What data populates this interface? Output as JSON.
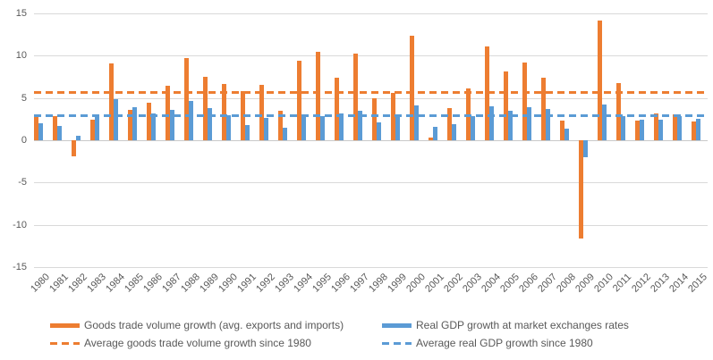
{
  "background": "#ffffff",
  "colors": {
    "goods_trade": "#ED7D31",
    "real_gdp": "#5B9BD5",
    "gridline": "#D9D9D9",
    "axis_text": "#595959"
  },
  "chart_data": {
    "type": "bar",
    "title": "",
    "xlabel": "",
    "ylabel": "",
    "ylim": [
      -15,
      15
    ],
    "yticks": [
      15,
      10,
      5,
      0,
      -5,
      -10,
      -15
    ],
    "grid": true,
    "legend_position": "bottom",
    "categories": [
      "1980",
      "1981",
      "1982",
      "1983",
      "1984",
      "1985",
      "1986",
      "1987",
      "1988",
      "1989",
      "1990",
      "1991",
      "1992",
      "1993",
      "1994",
      "1995",
      "1996",
      "1997",
      "1998",
      "1999",
      "2000",
      "2001",
      "2002",
      "2003",
      "2004",
      "2005",
      "2006",
      "2007",
      "2008",
      "2009",
      "2010",
      "2011",
      "2012",
      "2013",
      "2014",
      "2015"
    ],
    "series": [
      {
        "name": "Goods trade volume growth (avg. exports and imports)",
        "color": "#ED7D31",
        "values": [
          2.7,
          2.8,
          -1.9,
          2.4,
          9.1,
          3.6,
          4.4,
          6.4,
          9.7,
          7.5,
          6.7,
          5.8,
          6.5,
          3.5,
          9.4,
          10.5,
          7.4,
          10.2,
          5.0,
          5.6,
          12.4,
          0.3,
          3.8,
          6.1,
          11.1,
          8.1,
          9.2,
          7.4,
          2.3,
          -11.6,
          14.2,
          6.8,
          2.3,
          3.2,
          3.1,
          2.2
        ]
      },
      {
        "name": "Real GDP growth at market exchanges rates",
        "color": "#5B9BD5",
        "values": [
          2.0,
          1.7,
          0.5,
          3.0,
          4.9,
          3.9,
          3.2,
          3.6,
          4.6,
          3.8,
          3.0,
          1.8,
          2.6,
          1.5,
          3.1,
          2.9,
          3.2,
          3.5,
          2.1,
          3.1,
          4.1,
          1.6,
          1.9,
          2.8,
          4.0,
          3.5,
          3.9,
          3.7,
          1.4,
          -2.0,
          4.2,
          2.8,
          2.4,
          2.4,
          2.8,
          2.5
        ]
      }
    ],
    "reference_lines": [
      {
        "name": "Average goods trade volume growth since 1980",
        "value": 5.6,
        "color": "#ED7D31",
        "style": "dashed"
      },
      {
        "name": "Average real GDP growth since 1980",
        "value": 2.9,
        "color": "#5B9BD5",
        "style": "dashed"
      }
    ]
  }
}
